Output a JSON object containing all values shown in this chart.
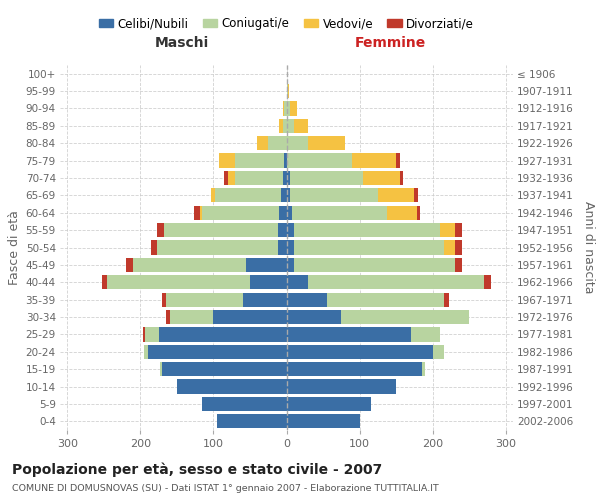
{
  "age_groups": [
    "0-4",
    "5-9",
    "10-14",
    "15-19",
    "20-24",
    "25-29",
    "30-34",
    "35-39",
    "40-44",
    "45-49",
    "50-54",
    "55-59",
    "60-64",
    "65-69",
    "70-74",
    "75-79",
    "80-84",
    "85-89",
    "90-94",
    "95-99",
    "100+"
  ],
  "birth_years": [
    "2002-2006",
    "1997-2001",
    "1992-1996",
    "1987-1991",
    "1982-1986",
    "1977-1981",
    "1972-1976",
    "1967-1971",
    "1962-1966",
    "1957-1961",
    "1952-1956",
    "1947-1951",
    "1942-1946",
    "1937-1941",
    "1932-1936",
    "1927-1931",
    "1922-1926",
    "1917-1921",
    "1912-1916",
    "1907-1911",
    "≤ 1906"
  ],
  "males": {
    "celibi": [
      95,
      115,
      150,
      170,
      190,
      175,
      100,
      60,
      50,
      55,
      12,
      12,
      10,
      8,
      5,
      3,
      0,
      0,
      0,
      0,
      0
    ],
    "coniugati": [
      0,
      0,
      0,
      3,
      5,
      18,
      60,
      105,
      195,
      155,
      165,
      155,
      105,
      90,
      65,
      68,
      25,
      5,
      3,
      0,
      0
    ],
    "vedovi": [
      0,
      0,
      0,
      0,
      0,
      0,
      0,
      0,
      0,
      0,
      0,
      0,
      3,
      5,
      10,
      22,
      15,
      5,
      2,
      0,
      0
    ],
    "divorziati": [
      0,
      0,
      0,
      0,
      0,
      3,
      5,
      5,
      8,
      10,
      8,
      10,
      8,
      0,
      5,
      0,
      0,
      0,
      0,
      0,
      0
    ]
  },
  "females": {
    "nubili": [
      100,
      115,
      150,
      185,
      200,
      170,
      75,
      55,
      30,
      10,
      10,
      10,
      8,
      5,
      5,
      0,
      0,
      0,
      0,
      0,
      0
    ],
    "coniugate": [
      0,
      0,
      0,
      5,
      15,
      40,
      175,
      160,
      240,
      220,
      205,
      200,
      130,
      120,
      100,
      90,
      30,
      10,
      5,
      2,
      0
    ],
    "vedove": [
      0,
      0,
      0,
      0,
      0,
      0,
      0,
      0,
      0,
      0,
      15,
      20,
      40,
      50,
      50,
      60,
      50,
      20,
      10,
      2,
      0
    ],
    "divorziate": [
      0,
      0,
      0,
      0,
      0,
      0,
      0,
      8,
      10,
      10,
      10,
      10,
      5,
      5,
      5,
      5,
      0,
      0,
      0,
      0,
      0
    ]
  },
  "colors": {
    "celibi_nubili": "#3a6ea5",
    "coniugati": "#b8d4a0",
    "vedovi": "#f5c242",
    "divorziati": "#c0392b"
  },
  "xlim": 310,
  "title": "Popolazione per età, sesso e stato civile - 2007",
  "subtitle": "COMUNE DI DOMUSNOVAS (SU) - Dati ISTAT 1° gennaio 2007 - Elaborazione TUTTITALIA.IT",
  "xlabel_left": "Maschi",
  "xlabel_right": "Femmine",
  "ylabel_left": "Fasce di età",
  "ylabel_right": "Anni di nascita",
  "legend_labels": [
    "Celibi/Nubili",
    "Coniugati/e",
    "Vedovi/e",
    "Divorziati/e"
  ],
  "bg_color": "#ffffff",
  "grid_color": "#cccccc"
}
